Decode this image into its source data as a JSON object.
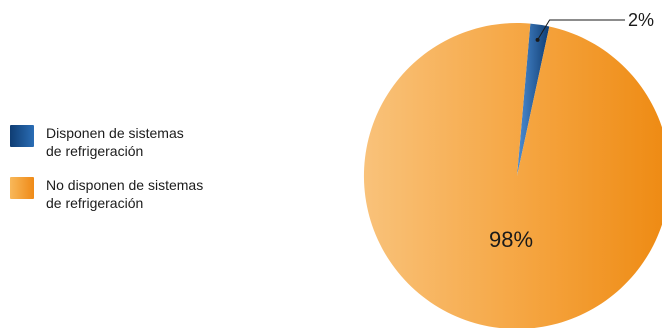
{
  "chart_data": {
    "type": "pie",
    "title": "",
    "slices": [
      {
        "label": "Disponen de sistemas de refrigeración",
        "label_lines": [
          "Disponen de sistemas",
          "de refrigeración"
        ],
        "value": 2,
        "display": "2%",
        "color": "#1c4f8c"
      },
      {
        "label": "No disponen de sistemas de refrigeración",
        "label_lines": [
          "No disponen de sistemas",
          "de refrigeración"
        ],
        "value": 98,
        "display": "98%",
        "color": "#f39a2e"
      }
    ],
    "legend_position": "left"
  }
}
